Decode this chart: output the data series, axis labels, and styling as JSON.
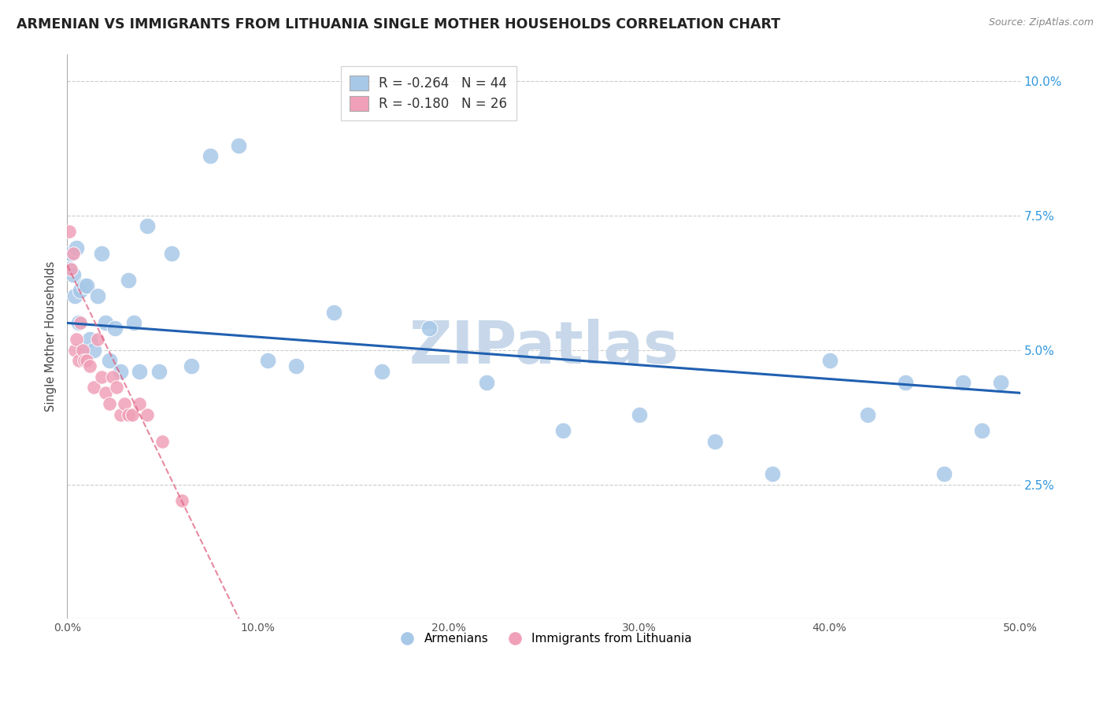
{
  "title": "ARMENIAN VS IMMIGRANTS FROM LITHUANIA SINGLE MOTHER HOUSEHOLDS CORRELATION CHART",
  "source": "Source: ZipAtlas.com",
  "ylabel": "Single Mother Households",
  "blue_color": "#a8c8e8",
  "pink_color": "#f0a0b8",
  "blue_line_color": "#2060b0",
  "pink_line_color": "#e06080",
  "watermark": "ZIPatlas",
  "watermark_color": "#c8d8ea",
  "blue_r": -0.264,
  "blue_n": 44,
  "pink_r": -0.18,
  "pink_n": 26,
  "blue_x": [
    0.001,
    0.002,
    0.003,
    0.004,
    0.005,
    0.006,
    0.007,
    0.008,
    0.009,
    0.01,
    0.012,
    0.014,
    0.016,
    0.018,
    0.02,
    0.022,
    0.025,
    0.028,
    0.032,
    0.035,
    0.038,
    0.042,
    0.048,
    0.055,
    0.065,
    0.075,
    0.09,
    0.105,
    0.12,
    0.14,
    0.165,
    0.19,
    0.22,
    0.26,
    0.3,
    0.34,
    0.37,
    0.4,
    0.42,
    0.44,
    0.46,
    0.47,
    0.48,
    0.49
  ],
  "blue_y": [
    0.065,
    0.068,
    0.064,
    0.06,
    0.069,
    0.055,
    0.061,
    0.05,
    0.062,
    0.062,
    0.052,
    0.05,
    0.06,
    0.068,
    0.055,
    0.048,
    0.054,
    0.046,
    0.063,
    0.055,
    0.046,
    0.073,
    0.046,
    0.068,
    0.047,
    0.086,
    0.088,
    0.048,
    0.047,
    0.057,
    0.046,
    0.054,
    0.044,
    0.035,
    0.038,
    0.033,
    0.027,
    0.048,
    0.038,
    0.044,
    0.027,
    0.044,
    0.035,
    0.044
  ],
  "pink_x": [
    0.001,
    0.002,
    0.003,
    0.004,
    0.005,
    0.006,
    0.007,
    0.008,
    0.009,
    0.01,
    0.012,
    0.014,
    0.016,
    0.018,
    0.02,
    0.022,
    0.024,
    0.026,
    0.028,
    0.03,
    0.032,
    0.034,
    0.038,
    0.042,
    0.05,
    0.06
  ],
  "pink_y": [
    0.072,
    0.065,
    0.068,
    0.05,
    0.052,
    0.048,
    0.055,
    0.05,
    0.048,
    0.048,
    0.047,
    0.043,
    0.052,
    0.045,
    0.042,
    0.04,
    0.045,
    0.043,
    0.038,
    0.04,
    0.038,
    0.038,
    0.04,
    0.038,
    0.033,
    0.022
  ],
  "xlim": [
    0.0,
    0.5
  ],
  "ylim": [
    0.0,
    0.105
  ],
  "xtick_positions": [
    0.0,
    0.1,
    0.2,
    0.3,
    0.4,
    0.5
  ],
  "xtick_labels": [
    "0.0%",
    "10.0%",
    "20.0%",
    "30.0%",
    "40.0%",
    "50.0%"
  ],
  "ytick_positions": [
    0.0,
    0.025,
    0.05,
    0.075,
    0.1
  ],
  "ytick_labels": [
    "",
    "2.5%",
    "5.0%",
    "7.5%",
    "10.0%"
  ]
}
